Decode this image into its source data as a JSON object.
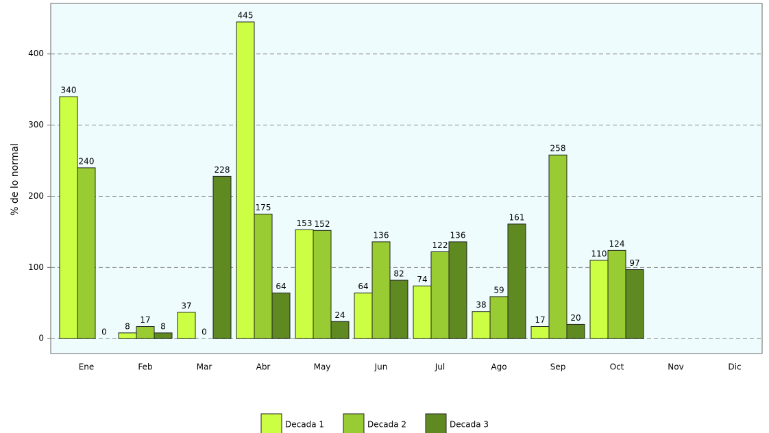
{
  "chart_data": {
    "type": "bar",
    "y_label": "% de lo normal",
    "categories": [
      "Ene",
      "Feb",
      "Mar",
      "Abr",
      "May",
      "Jun",
      "Jul",
      "Ago",
      "Sep",
      "Oct",
      "Nov",
      "Dic"
    ],
    "series": [
      {
        "name": "Decada 1",
        "color": "#ccff44",
        "values": [
          340,
          8,
          37,
          445,
          153,
          64,
          74,
          38,
          17,
          110,
          null,
          null
        ]
      },
      {
        "name": "Decada 2",
        "color": "#99cc33",
        "values": [
          240,
          17,
          0,
          175,
          152,
          136,
          122,
          59,
          258,
          124,
          null,
          null
        ]
      },
      {
        "name": "Decada 3",
        "color": "#5f8a22",
        "values": [
          0,
          8,
          228,
          64,
          24,
          82,
          136,
          161,
          20,
          97,
          null,
          null
        ]
      }
    ],
    "ylim": [
      -21,
      471
    ],
    "yticks": [
      0,
      100,
      200,
      300,
      400
    ],
    "grid": true,
    "legend": "bottom"
  }
}
